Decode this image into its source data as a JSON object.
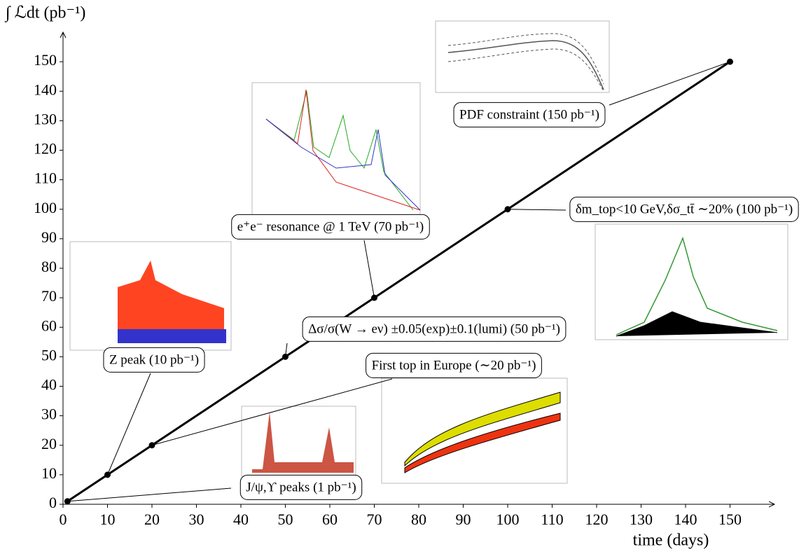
{
  "chart_data": {
    "type": "line",
    "y_label": "∫ ℒdt (pb⁻¹)",
    "x_label": "time (days)",
    "x": [
      1,
      10,
      20,
      50,
      70,
      100,
      150
    ],
    "series": [
      {
        "color": "#000000",
        "values": [
          1,
          10,
          20,
          50,
          70,
          100,
          150
        ]
      }
    ],
    "annotations": [
      "J/ψ,ϒ peaks (1 pb⁻¹)",
      "Z peak (10 pb⁻¹)",
      "First top in Europe (∼20 pb⁻¹)",
      "Δσ/σ(W → eν) ±0.05(exp)±0.1(lumi) (50 pb⁻¹)",
      "e⁺e⁻ resonance @ 1 TeV (70 pb⁻¹)",
      "δm_top<10 GeV,δσ_tt̄ ∼20% (100 pb⁻¹)",
      "PDF constraint (150 pb⁻¹)"
    ],
    "xlim": [
      0,
      160
    ],
    "ylim": [
      0,
      160
    ],
    "xticks": [
      0,
      10,
      20,
      30,
      40,
      50,
      60,
      70,
      80,
      90,
      100,
      110,
      120,
      130,
      140,
      150
    ],
    "yticks": [
      0,
      10,
      20,
      30,
      40,
      50,
      60,
      70,
      80,
      90,
      100,
      110,
      120,
      130,
      140,
      150
    ]
  }
}
